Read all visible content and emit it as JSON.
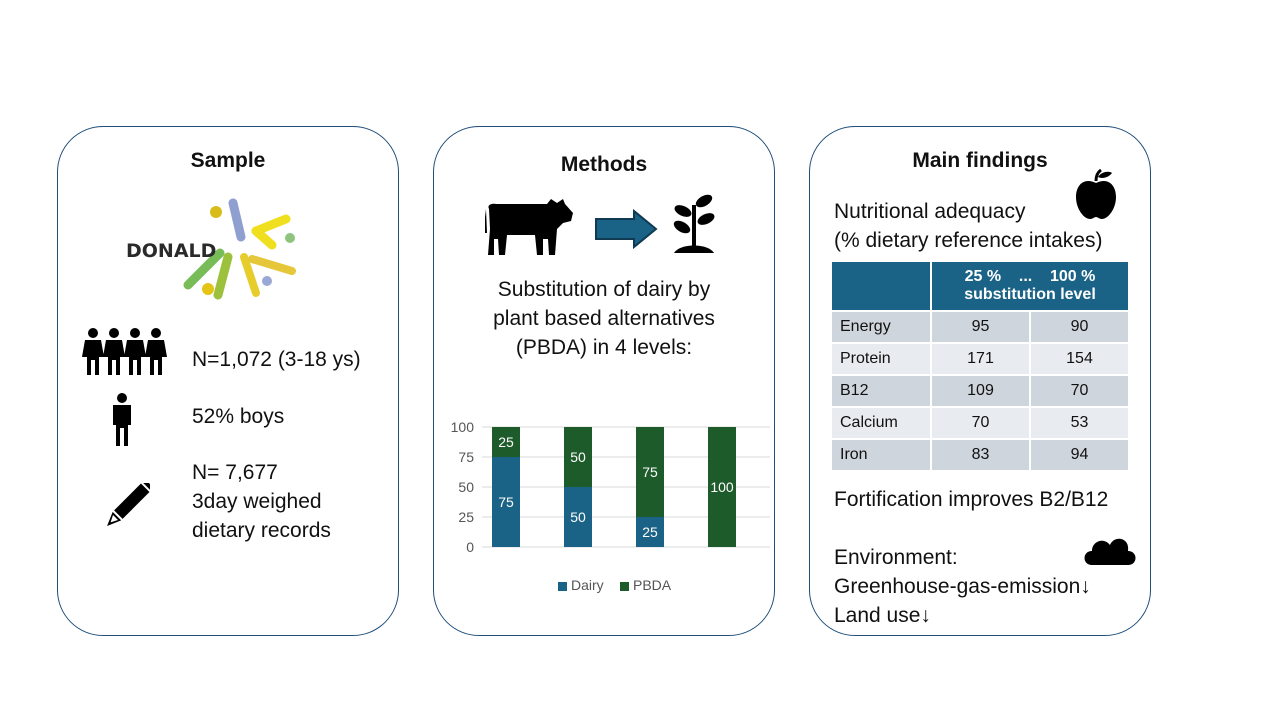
{
  "sample": {
    "title": "Sample",
    "logo_text": "DONALD",
    "n_participants": "N=1,072 (3-18 ys)",
    "boys": "52% boys",
    "records_line1": "N= 7,677",
    "records_line2": "3day weighed",
    "records_line3": "dietary records",
    "icons": [
      "family-icon",
      "person-icon",
      "pencil-icon"
    ]
  },
  "methods": {
    "title": "Methods",
    "desc_line1": "Substitution of dairy by",
    "desc_line2": "plant based alternatives",
    "desc_line3": "(PBDA) in 4 levels:",
    "icons": [
      "cow-icon",
      "arrow-right-icon",
      "plant-icon"
    ]
  },
  "chart_data": {
    "type": "bar",
    "stacked": true,
    "categories": [
      "",
      "",
      "",
      ""
    ],
    "series": [
      {
        "name": "Dairy",
        "values": [
          75,
          50,
          25,
          0
        ],
        "color": "#1b6386"
      },
      {
        "name": "PBDA",
        "values": [
          25,
          50,
          75,
          100
        ],
        "color": "#1e5b2a"
      }
    ],
    "data_labels": [
      {
        "series": "Dairy",
        "labels": [
          "75",
          "50",
          "25",
          ""
        ]
      },
      {
        "series": "PBDA",
        "labels": [
          "25",
          "50",
          "75",
          "100"
        ]
      }
    ],
    "ylim": [
      0,
      100
    ],
    "yticks": [
      "100",
      "75",
      "50",
      "25",
      "0"
    ],
    "grid": true,
    "legend": "bottom"
  },
  "findings": {
    "title": "Main findings",
    "nutr_line1": "Nutritional adequacy",
    "nutr_line2": "(% dietary reference intakes)",
    "table": {
      "header_line1": "25 %    ...    100 %",
      "header_line2": "substitution level",
      "rows": [
        {
          "label": "Energy",
          "v25": "95",
          "v100": "90"
        },
        {
          "label": "Protein",
          "v25": "171",
          "v100": "154"
        },
        {
          "label": "B12",
          "v25": "109",
          "v100": "70"
        },
        {
          "label": "Calcium",
          "v25": "70",
          "v100": "53"
        },
        {
          "label": "Iron",
          "v25": "83",
          "v100": "94"
        }
      ]
    },
    "fortification": "Fortification improves B2/B12",
    "env_title": "Environment:",
    "env_line1": "Greenhouse-gas-emission↓",
    "env_line2": "Land use↓",
    "icons": [
      "apple-icon",
      "cloud-icon"
    ]
  },
  "colors": {
    "border": "#1f4e79",
    "dairy": "#1b6386",
    "pbda": "#1e5b2a",
    "header": "#1b6386"
  }
}
